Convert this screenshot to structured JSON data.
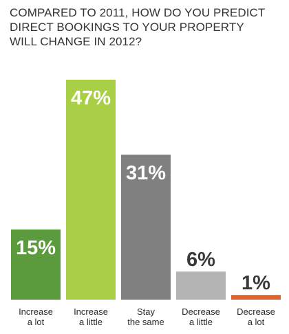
{
  "chart_data": {
    "type": "bar",
    "title": "COMPARED TO 2011, HOW DO YOU PREDICT DIRECT BOOKINGS TO YOUR PROPERTY WILL CHANGE IN 2012?",
    "title_lines": [
      "COMPARED TO 2011, HOW DO YOU PREDICT",
      "DIRECT BOOKINGS TO YOUR PROPERTY",
      "WILL CHANGE IN 2012?"
    ],
    "categories": [
      [
        "Increase",
        "a lot"
      ],
      [
        "Increase",
        "a little"
      ],
      [
        "Stay",
        "the same"
      ],
      [
        "Decrease",
        "a little"
      ],
      [
        "Decrease",
        "a lot"
      ]
    ],
    "values": [
      15,
      47,
      31,
      6,
      1
    ],
    "value_labels": [
      "15%",
      "47%",
      "31%",
      "6%",
      "1%"
    ],
    "colors": [
      "#5b9a3d",
      "#a8cf45",
      "#808080",
      "#b4b4b4",
      "#e0622c"
    ],
    "ylim": [
      0,
      47
    ],
    "grid": false,
    "legend": "none"
  }
}
